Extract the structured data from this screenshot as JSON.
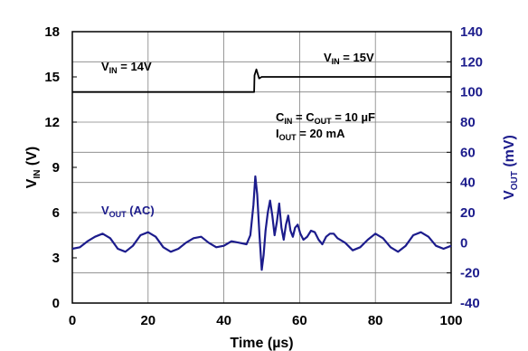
{
  "chart_data": {
    "type": "line",
    "title": "",
    "xlabel": "Time (µs)",
    "ylabel_left": {
      "main": "V",
      "sub": "IN",
      "rest": " (V)"
    },
    "ylabel_right": {
      "main": "V",
      "sub": "OUT",
      "rest": " (mV)"
    },
    "xlim": [
      0,
      100
    ],
    "ylim_left": [
      0,
      18
    ],
    "ylim_right": [
      -40,
      140
    ],
    "x_ticks": [
      "0",
      "20",
      "40",
      "60",
      "80",
      "100"
    ],
    "y_left_ticks": [
      "0",
      "3",
      "6",
      "9",
      "12",
      "15",
      "18"
    ],
    "y_right_ticks": [
      "-40",
      "-20",
      "0",
      "20",
      "40",
      "60",
      "80",
      "100",
      "120",
      "140"
    ],
    "grid": true,
    "colors": {
      "vin": "#000000",
      "vout": "#1c1c8c",
      "right_axis_text": "#1c1c8c",
      "grid": "#808080"
    },
    "annotations": {
      "vin_before": {
        "main": "V",
        "sub": "IN",
        "rest": " = 14V"
      },
      "vin_after": {
        "main": "V",
        "sub": "IN",
        "rest": " = 15V"
      },
      "cap_line": {
        "p1": "C",
        "s1": "IN",
        "p2": " = C",
        "s2": "OUT",
        "p3": " = 10 µF"
      },
      "iout_line": {
        "p1": "I",
        "s1": "OUT",
        "p2": " = 20 mA"
      },
      "vout_label": {
        "main": "V",
        "sub": "OUT",
        "rest": " (AC)"
      }
    },
    "series": [
      {
        "name": "VIN",
        "axis": "left",
        "x": [
          0,
          48,
          48.1,
          48.6,
          49.3,
          50,
          100
        ],
        "y": [
          14.0,
          14.0,
          15.1,
          15.5,
          14.9,
          15.0,
          15.0
        ]
      },
      {
        "name": "VOUT (AC)",
        "axis": "right",
        "x": [
          0,
          2,
          4,
          6,
          8,
          10,
          12,
          14,
          16,
          18,
          20,
          22,
          24,
          26,
          28,
          30,
          32,
          34,
          36,
          38,
          40,
          42,
          44,
          46,
          47,
          47.8,
          48.3,
          48.8,
          49.4,
          50,
          50.5,
          51,
          51.6,
          52.2,
          52.8,
          53.4,
          54,
          54.6,
          55.2,
          55.8,
          56.4,
          57,
          57.6,
          58.2,
          58.8,
          59.5,
          60.2,
          61,
          62,
          63,
          64,
          65,
          66,
          67,
          68,
          69,
          70,
          72,
          74,
          76,
          78,
          80,
          82,
          84,
          86,
          88,
          90,
          92,
          94,
          96,
          98,
          100
        ],
        "y": [
          -4,
          -3,
          1,
          4,
          6,
          3,
          -4,
          -6,
          -2,
          5,
          7,
          4,
          -3,
          -6,
          -4,
          0,
          3,
          4,
          0,
          -3,
          -2,
          1,
          0,
          -1,
          5,
          25,
          44,
          32,
          5,
          -18,
          -8,
          8,
          20,
          28,
          18,
          5,
          14,
          26,
          10,
          2,
          12,
          18,
          8,
          4,
          10,
          12,
          6,
          2,
          4,
          8,
          7,
          2,
          -1,
          4,
          6,
          6,
          3,
          0,
          -5,
          -3,
          2,
          6,
          3,
          -3,
          -6,
          -2,
          5,
          7,
          4,
          -2,
          -4,
          -2
        ]
      }
    ]
  }
}
